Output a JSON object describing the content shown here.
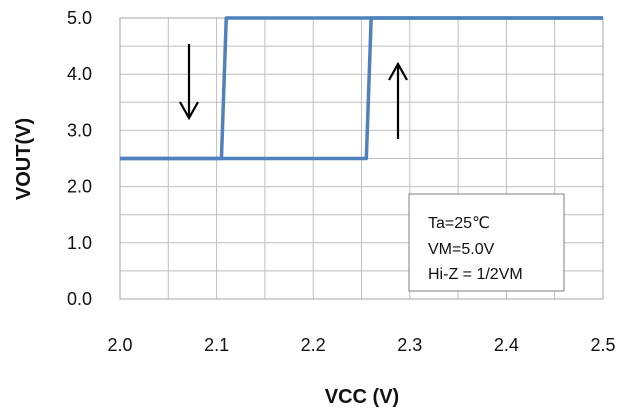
{
  "chart_data": {
    "type": "line",
    "title": "",
    "xlabel": "VCC (V)",
    "ylabel": "VOUT(V)",
    "xlim": [
      2.0,
      2.5
    ],
    "ylim": [
      0.0,
      5.0
    ],
    "x_ticks": [
      "2.0",
      "2.1",
      "2.2",
      "2.3",
      "2.4",
      "2.5"
    ],
    "y_ticks": [
      "0.0",
      "1.0",
      "2.0",
      "3.0",
      "4.0",
      "5.0"
    ],
    "x_tick_values": [
      2.0,
      2.1,
      2.2,
      2.3,
      2.4,
      2.5
    ],
    "y_tick_values": [
      0.0,
      1.0,
      2.0,
      3.0,
      4.0,
      5.0
    ],
    "x_minor_step": 0.05,
    "y_minor_step": 0.5,
    "grid": true,
    "series_color": "#4F81BD",
    "series": [
      {
        "name": "",
        "x": [
          2.0,
          2.105,
          2.11,
          2.5
        ],
        "y": [
          2.5,
          2.5,
          5.0,
          5.0
        ],
        "direction": "down"
      },
      {
        "name": "",
        "x": [
          2.0,
          2.255,
          2.26,
          2.5
        ],
        "y": [
          2.5,
          2.5,
          5.0,
          5.0
        ],
        "direction": "up"
      }
    ],
    "annotation_box": {
      "lines": [
        "Ta=25℃",
        "VM=5.0V",
        "Hi-Z = 1/2VM"
      ]
    }
  }
}
